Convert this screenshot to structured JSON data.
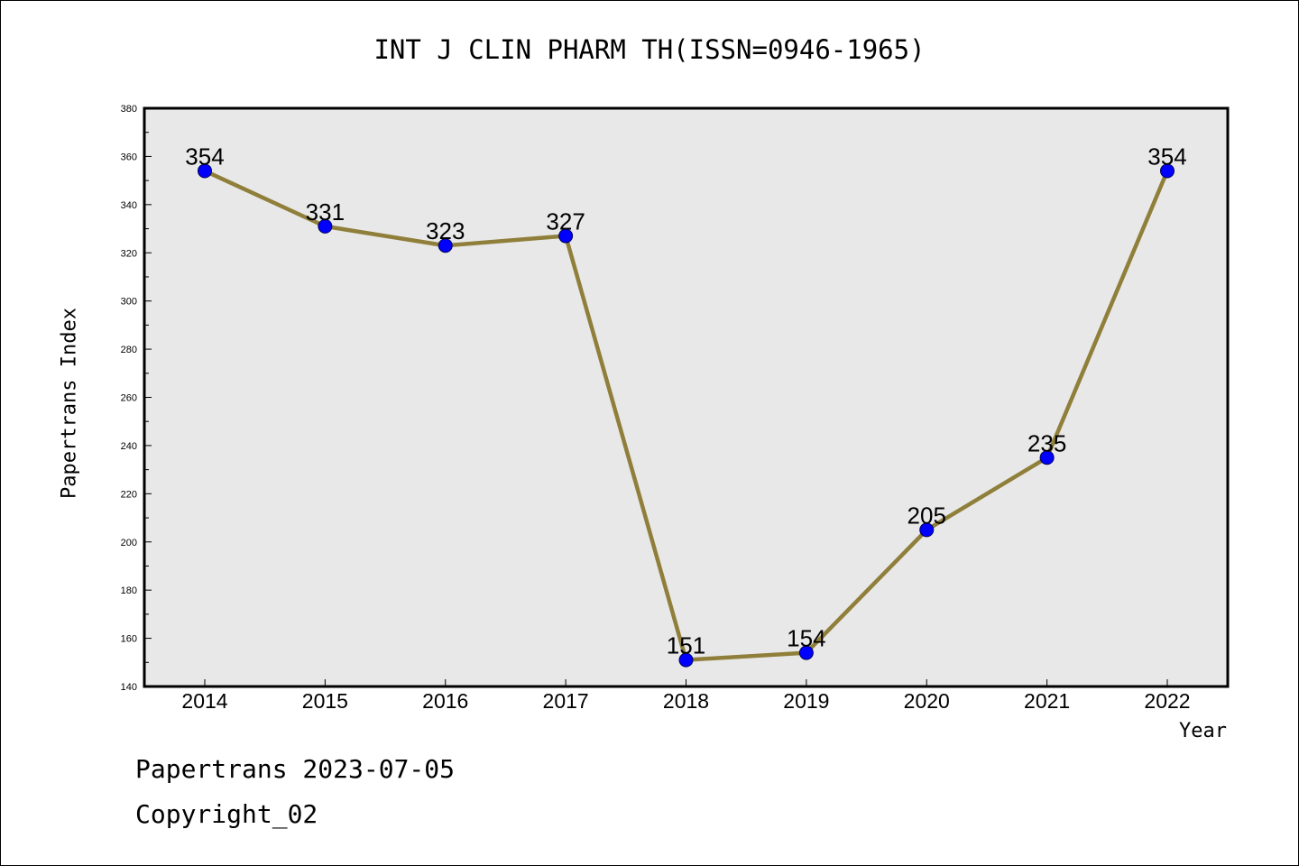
{
  "chart_data": {
    "type": "line",
    "title": "INT J CLIN PHARM TH(ISSN=0946-1965)",
    "xlabel": "Year",
    "ylabel": "Papertrans Index",
    "x": [
      "2014",
      "2015",
      "2016",
      "2017",
      "2018",
      "2019",
      "2020",
      "2021",
      "2022"
    ],
    "values": [
      354,
      331,
      323,
      327,
      151,
      154,
      205,
      235,
      354
    ],
    "data_labels": [
      "354",
      "331",
      "323",
      "327",
      "151",
      "154",
      "205",
      "235",
      "354"
    ],
    "ylim": [
      140,
      380
    ],
    "yticks": [
      140,
      160,
      180,
      200,
      220,
      240,
      260,
      280,
      300,
      320,
      340,
      360,
      380
    ],
    "grid": false,
    "legend": "none",
    "colors": {
      "line": "#8f7f3a",
      "marker": "#0000ff",
      "plot_background": "#e8e8e8"
    }
  },
  "footer": {
    "date_line": "Papertrans 2023-07-05",
    "copyright_line": "Copyright_02"
  }
}
